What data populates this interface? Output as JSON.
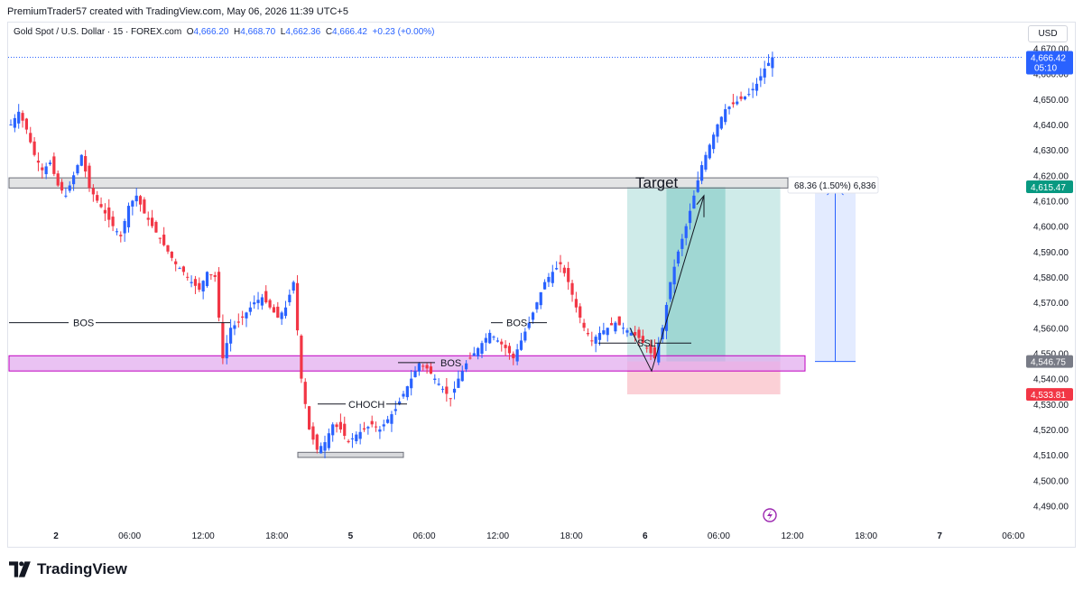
{
  "header": {
    "attribution": "PremiumTrader57 created with TradingView.com, May 06, 2026 11:39 UTC+5"
  },
  "legend": {
    "symbol": "Gold Spot / U.S. Dollar · 15 · FOREX.com",
    "open_label": "O",
    "open": "4,666.20",
    "high_label": "H",
    "high": "4,668.70",
    "low_label": "L",
    "low": "4,662.36",
    "close_label": "C",
    "close": "4,666.42",
    "change": "+0.23 (+0.00%)"
  },
  "currency_button": "USD",
  "footer": {
    "brand": "TradingView"
  },
  "colors": {
    "up": "#2962ff",
    "down": "#f23645",
    "target_box": "#26a69a",
    "stop_box": "#f7a1ae",
    "zone_purple": "#c000c0",
    "measure_blue": "#2962ff"
  },
  "chart_data": {
    "type": "candlestick",
    "y_axis": {
      "ticks": [
        "4,670.00",
        "4,660.00",
        "4,650.00",
        "4,640.00",
        "4,630.00",
        "4,620.00",
        "4,610.00",
        "4,600.00",
        "4,590.00",
        "4,580.00",
        "4,570.00",
        "4,560.00",
        "4,550.00",
        "4,540.00",
        "4,530.00",
        "4,520.00",
        "4,510.00",
        "4,500.00",
        "4,490.00"
      ],
      "range": [
        4482,
        4673
      ]
    },
    "x_axis": {
      "ticks": [
        "2",
        "06:00",
        "12:00",
        "18:00",
        "5",
        "06:00",
        "12:00",
        "18:00",
        "6",
        "06:00",
        "12:00",
        "18:00",
        "7",
        "06:00"
      ]
    },
    "price_tags": [
      {
        "label": "4,666.42",
        "sub": "05:10",
        "value": 4666.42,
        "color": "#2962ff"
      },
      {
        "label": "4,615.47",
        "value": 4615.47,
        "color": "#089981"
      },
      {
        "label": "4,546.75",
        "value": 4546.75,
        "color": "#787b86"
      },
      {
        "label": "4,533.81",
        "value": 4533.81,
        "color": "#f23645"
      }
    ],
    "annotations": {
      "bos_1": "BOS",
      "bos_2": "BOS",
      "bos_3": "BOS",
      "choch": "CHOCH",
      "ssl": "SSL",
      "target": "Target",
      "measure": "68.36 (1.50%) 6,836"
    },
    "zones": {
      "resistance_top": 4619,
      "resistance_bottom": 4615,
      "demand_top": 4549,
      "demand_bottom": 4543,
      "choch_low": 4510,
      "entry": 4546.75,
      "target": 4615.47,
      "stop": 4533.81
    },
    "path": [
      [
        0,
        4640
      ],
      [
        2,
        4645
      ],
      [
        4,
        4638
      ],
      [
        6,
        4628
      ],
      [
        8,
        4622
      ],
      [
        10,
        4625
      ],
      [
        12,
        4616
      ],
      [
        14,
        4612
      ],
      [
        16,
        4620
      ],
      [
        18,
        4628
      ],
      [
        20,
        4615
      ],
      [
        22,
        4610
      ],
      [
        24,
        4605
      ],
      [
        26,
        4600
      ],
      [
        28,
        4596
      ],
      [
        30,
        4608
      ],
      [
        32,
        4612
      ],
      [
        34,
        4605
      ],
      [
        36,
        4600
      ],
      [
        38,
        4595
      ],
      [
        40,
        4590
      ],
      [
        42,
        4585
      ],
      [
        44,
        4582
      ],
      [
        46,
        4578
      ],
      [
        48,
        4575
      ],
      [
        50,
        4582
      ],
      [
        52,
        4580
      ],
      [
        54,
        4548
      ],
      [
        56,
        4560
      ],
      [
        58,
        4562
      ],
      [
        60,
        4566
      ],
      [
        62,
        4570
      ],
      [
        64,
        4572
      ],
      [
        66,
        4568
      ],
      [
        68,
        4564
      ],
      [
        70,
        4568
      ],
      [
        72,
        4578
      ],
      [
        74,
        4540
      ],
      [
        76,
        4520
      ],
      [
        78,
        4512
      ],
      [
        80,
        4515
      ],
      [
        82,
        4522
      ],
      [
        84,
        4520
      ],
      [
        86,
        4515
      ],
      [
        88,
        4518
      ],
      [
        90,
        4520
      ],
      [
        92,
        4522
      ],
      [
        94,
        4520
      ],
      [
        96,
        4524
      ],
      [
        98,
        4528
      ],
      [
        100,
        4534
      ],
      [
        102,
        4540
      ],
      [
        104,
        4546
      ],
      [
        106,
        4544
      ],
      [
        108,
        4540
      ],
      [
        110,
        4536
      ],
      [
        112,
        4532
      ],
      [
        114,
        4540
      ],
      [
        116,
        4546
      ],
      [
        118,
        4550
      ],
      [
        120,
        4554
      ],
      [
        122,
        4558
      ],
      [
        124,
        4555
      ],
      [
        126,
        4552
      ],
      [
        128,
        4548
      ],
      [
        130,
        4555
      ],
      [
        132,
        4562
      ],
      [
        134,
        4570
      ],
      [
        136,
        4578
      ],
      [
        138,
        4582
      ],
      [
        140,
        4585
      ],
      [
        142,
        4578
      ],
      [
        144,
        4568
      ],
      [
        146,
        4560
      ],
      [
        148,
        4555
      ],
      [
        150,
        4558
      ],
      [
        152,
        4560
      ],
      [
        154,
        4562
      ],
      [
        156,
        4560
      ],
      [
        158,
        4558
      ],
      [
        160,
        4556
      ],
      [
        162,
        4552
      ],
      [
        164,
        4548
      ],
      [
        166,
        4560
      ],
      [
        168,
        4578
      ],
      [
        170,
        4590
      ],
      [
        172,
        4600
      ],
      [
        174,
        4612
      ],
      [
        176,
        4624
      ],
      [
        178,
        4632
      ],
      [
        180,
        4640
      ],
      [
        182,
        4646
      ],
      [
        184,
        4648
      ],
      [
        186,
        4650
      ],
      [
        188,
        4652
      ],
      [
        190,
        4656
      ],
      [
        192,
        4662
      ],
      [
        194,
        4666.42
      ]
    ]
  }
}
